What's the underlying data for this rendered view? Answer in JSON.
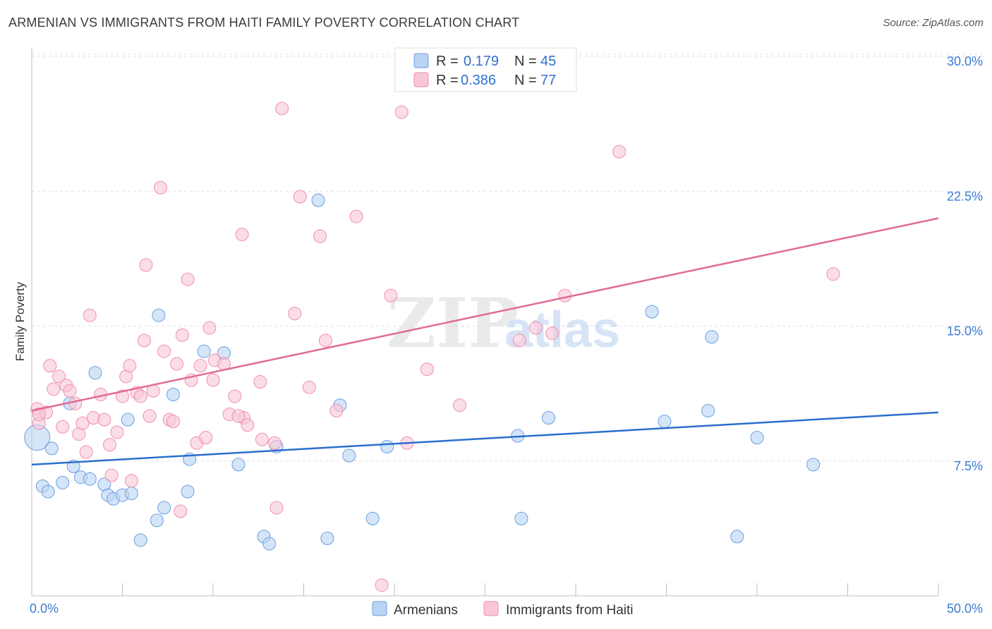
{
  "chart_data": {
    "type": "scatter",
    "title": "ARMENIAN VS IMMIGRANTS FROM HAITI FAMILY POVERTY CORRELATION CHART",
    "source": "Source: ZipAtlas.com",
    "xlabel": "",
    "ylabel": "Family Poverty",
    "xlim": [
      0,
      50
    ],
    "ylim": [
      0,
      30
    ],
    "x_tick_labels": [
      "0.0%",
      "50.0%"
    ],
    "y_ticks": [
      7.5,
      15.0,
      22.5,
      30.0
    ],
    "y_tick_labels": [
      "7.5%",
      "15.0%",
      "22.5%",
      "30.0%"
    ],
    "grid": true,
    "watermark": {
      "part1": "ZIP",
      "part2": "atlas"
    },
    "legend": {
      "r_label": "R =",
      "n_label": "N =",
      "entries": [
        {
          "r": "0.179",
          "n": "45"
        },
        {
          "r": "0.386",
          "n": "77"
        }
      ]
    },
    "series": [
      {
        "name": "Armenians",
        "color": "#6a9fe0",
        "fill": "#b9d3f3",
        "line_color": "#2b6fcd",
        "trend": {
          "x": [
            0,
            50
          ],
          "y": [
            7.3,
            10.2
          ]
        },
        "points": [
          [
            0.3,
            8.8
          ],
          [
            1.1,
            8.2
          ],
          [
            0.6,
            6.1
          ],
          [
            0.9,
            5.8
          ],
          [
            1.7,
            6.3
          ],
          [
            2.3,
            7.2
          ],
          [
            2.7,
            6.6
          ],
          [
            3.2,
            6.5
          ],
          [
            2.1,
            10.7
          ],
          [
            3.5,
            12.4
          ],
          [
            4.0,
            6.2
          ],
          [
            4.2,
            5.6
          ],
          [
            4.5,
            5.4
          ],
          [
            5.0,
            5.6
          ],
          [
            5.3,
            9.8
          ],
          [
            5.5,
            5.7
          ],
          [
            6.0,
            3.1
          ],
          [
            6.9,
            4.2
          ],
          [
            7.0,
            15.6
          ],
          [
            7.3,
            4.9
          ],
          [
            7.8,
            11.2
          ],
          [
            8.7,
            7.6
          ],
          [
            8.6,
            5.8
          ],
          [
            9.5,
            13.6
          ],
          [
            10.6,
            13.5
          ],
          [
            11.4,
            7.3
          ],
          [
            12.8,
            3.3
          ],
          [
            13.1,
            2.9
          ],
          [
            13.5,
            8.3
          ],
          [
            15.8,
            22.0
          ],
          [
            16.3,
            3.2
          ],
          [
            17.5,
            7.8
          ],
          [
            17.0,
            10.6
          ],
          [
            18.8,
            4.3
          ],
          [
            19.6,
            8.3
          ],
          [
            26.8,
            8.9
          ],
          [
            27.0,
            4.3
          ],
          [
            28.5,
            9.9
          ],
          [
            34.2,
            15.8
          ],
          [
            34.9,
            9.7
          ],
          [
            37.3,
            10.3
          ],
          [
            37.5,
            14.4
          ],
          [
            40.0,
            8.8
          ],
          [
            43.1,
            7.3
          ],
          [
            38.9,
            3.3
          ]
        ]
      },
      {
        "name": "Immigrants from Haiti",
        "color": "#ef8fb0",
        "fill": "#f8c6d7",
        "line_color": "#e06c95",
        "trend": {
          "x": [
            0,
            50
          ],
          "y": [
            10.3,
            21.0
          ]
        },
        "points": [
          [
            0.3,
            10.4
          ],
          [
            0.4,
            9.6
          ],
          [
            0.8,
            10.2
          ],
          [
            1.0,
            12.8
          ],
          [
            1.2,
            11.5
          ],
          [
            1.5,
            12.2
          ],
          [
            1.7,
            9.4
          ],
          [
            1.9,
            11.7
          ],
          [
            2.1,
            11.4
          ],
          [
            2.4,
            10.7
          ],
          [
            2.6,
            9.0
          ],
          [
            2.8,
            9.6
          ],
          [
            3.0,
            8.0
          ],
          [
            3.2,
            15.6
          ],
          [
            3.4,
            9.9
          ],
          [
            3.8,
            11.2
          ],
          [
            4.0,
            9.8
          ],
          [
            4.3,
            8.4
          ],
          [
            4.4,
            6.7
          ],
          [
            4.7,
            9.1
          ],
          [
            5.0,
            11.1
          ],
          [
            5.2,
            12.2
          ],
          [
            5.4,
            12.8
          ],
          [
            5.5,
            6.4
          ],
          [
            5.8,
            11.3
          ],
          [
            6.0,
            11.1
          ],
          [
            6.2,
            14.2
          ],
          [
            6.3,
            18.4
          ],
          [
            6.5,
            10.0
          ],
          [
            6.7,
            11.4
          ],
          [
            7.1,
            22.7
          ],
          [
            7.3,
            13.6
          ],
          [
            7.6,
            9.8
          ],
          [
            7.8,
            9.7
          ],
          [
            8.0,
            12.9
          ],
          [
            8.2,
            4.7
          ],
          [
            8.3,
            14.5
          ],
          [
            8.6,
            17.6
          ],
          [
            8.8,
            12.0
          ],
          [
            9.1,
            8.5
          ],
          [
            9.3,
            12.8
          ],
          [
            9.6,
            8.8
          ],
          [
            9.8,
            14.9
          ],
          [
            10.0,
            12.0
          ],
          [
            10.1,
            13.1
          ],
          [
            10.6,
            12.9
          ],
          [
            10.9,
            10.1
          ],
          [
            11.2,
            11.1
          ],
          [
            11.6,
            20.1
          ],
          [
            11.7,
            9.9
          ],
          [
            11.9,
            9.5
          ],
          [
            12.6,
            11.9
          ],
          [
            12.7,
            8.7
          ],
          [
            13.4,
            8.5
          ],
          [
            13.5,
            4.9
          ],
          [
            13.8,
            27.1
          ],
          [
            14.5,
            15.7
          ],
          [
            14.8,
            22.2
          ],
          [
            15.3,
            11.6
          ],
          [
            15.9,
            20.0
          ],
          [
            16.2,
            14.2
          ],
          [
            16.8,
            10.3
          ],
          [
            17.9,
            21.1
          ],
          [
            19.3,
            0.6
          ],
          [
            19.8,
            16.7
          ],
          [
            20.4,
            26.9
          ],
          [
            20.7,
            8.5
          ],
          [
            21.8,
            12.6
          ],
          [
            23.6,
            10.6
          ],
          [
            26.9,
            14.2
          ],
          [
            27.8,
            14.9
          ],
          [
            28.7,
            14.6
          ],
          [
            29.4,
            16.7
          ],
          [
            32.4,
            24.7
          ],
          [
            44.2,
            17.9
          ],
          [
            0.4,
            10.1
          ],
          [
            11.4,
            10.0
          ]
        ]
      }
    ]
  }
}
